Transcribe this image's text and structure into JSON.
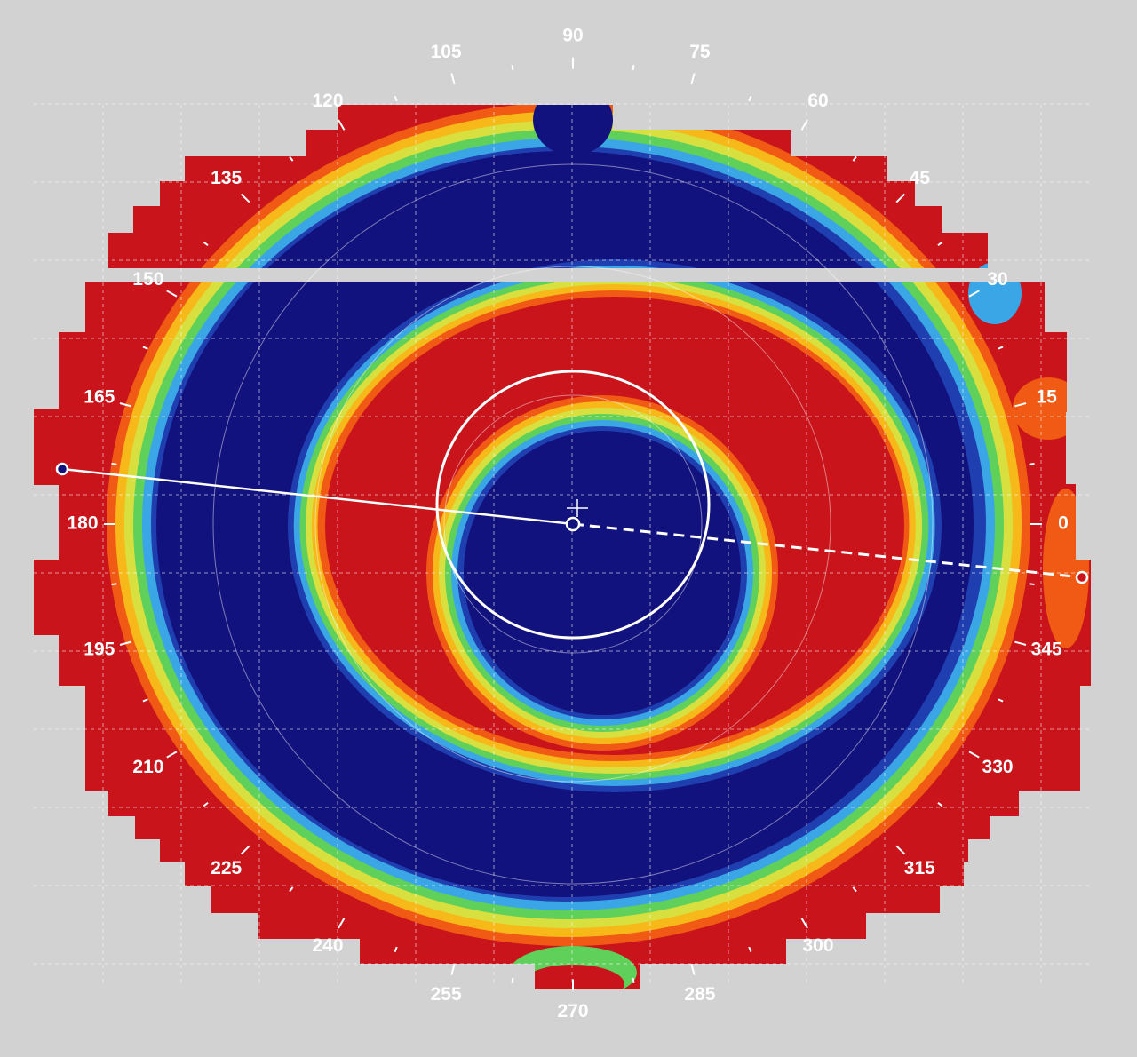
{
  "map": {
    "angle_labels": [
      "0",
      "15",
      "30",
      "45",
      "60",
      "75",
      "90",
      "105",
      "120",
      "135",
      "150",
      "165",
      "180",
      "195",
      "210",
      "225",
      "240",
      "255",
      "270",
      "285",
      "300",
      "315",
      "330",
      "345"
    ],
    "color_scale": [
      "#12127f",
      "#1f3fb0",
      "#3aa6e6",
      "#5fd05a",
      "#d8e040",
      "#f7b81a",
      "#f05a14",
      "#c8141a"
    ],
    "background_color": "#d2d2d2",
    "overlay_color": "#ffffff"
  }
}
